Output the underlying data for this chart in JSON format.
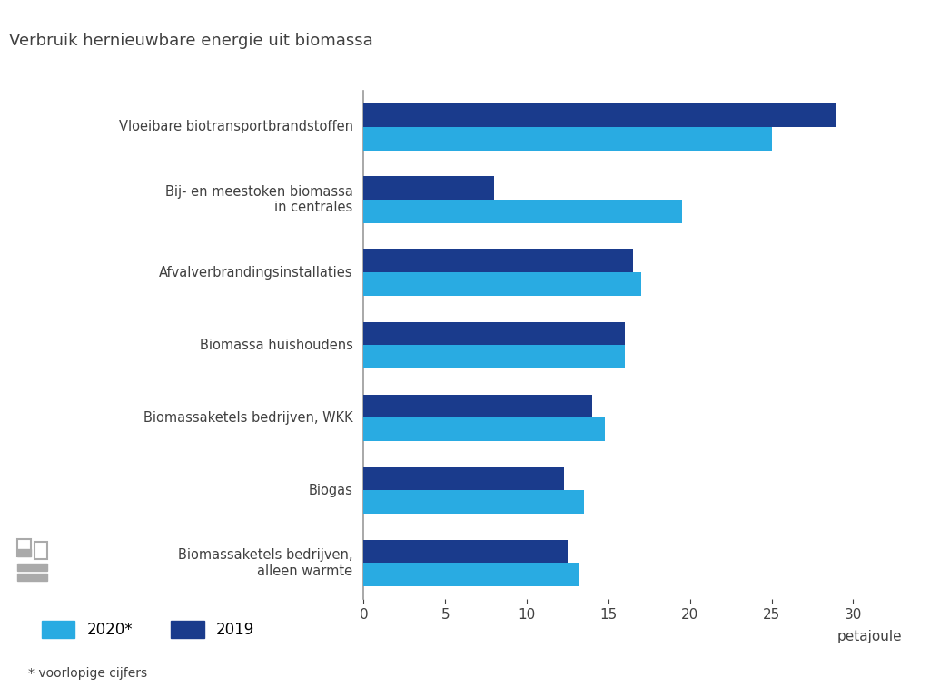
{
  "title": "Verbruik hernieuwbare energie uit biomassa",
  "categories": [
    "Vloeibare biotransportbrandstoffen",
    "Bij- en meestoken biomassa\nin centrales",
    "Afvalverbrandingsinstallaties",
    "Biomassa huishoudens",
    "Biomassaketels bedrijven, WKK",
    "Biogas",
    "Biomassaketels bedrijven,\nalleen warmte"
  ],
  "values_2020": [
    25.0,
    19.5,
    17.0,
    16.0,
    14.8,
    13.5,
    13.2
  ],
  "values_2019": [
    29.0,
    8.0,
    16.5,
    16.0,
    14.0,
    12.3,
    12.5
  ],
  "color_2020": "#29ABE2",
  "color_2019": "#1A3B8C",
  "xlabel": "petajoule",
  "xlim": [
    0,
    33
  ],
  "xticks": [
    0,
    5,
    10,
    15,
    20,
    25,
    30
  ],
  "legend_2020": "2020*",
  "legend_2019": "2019",
  "footnote": "* voorlopige cijfers",
  "gray_bg_color": "#E8E8E8",
  "bar_height": 0.32,
  "title_fontsize": 13,
  "label_fontsize": 10.5,
  "tick_fontsize": 11,
  "white_color": "#FFFFFF",
  "text_color": "#404040",
  "grid_color": "#FFFFFF",
  "spine_color": "#999999"
}
